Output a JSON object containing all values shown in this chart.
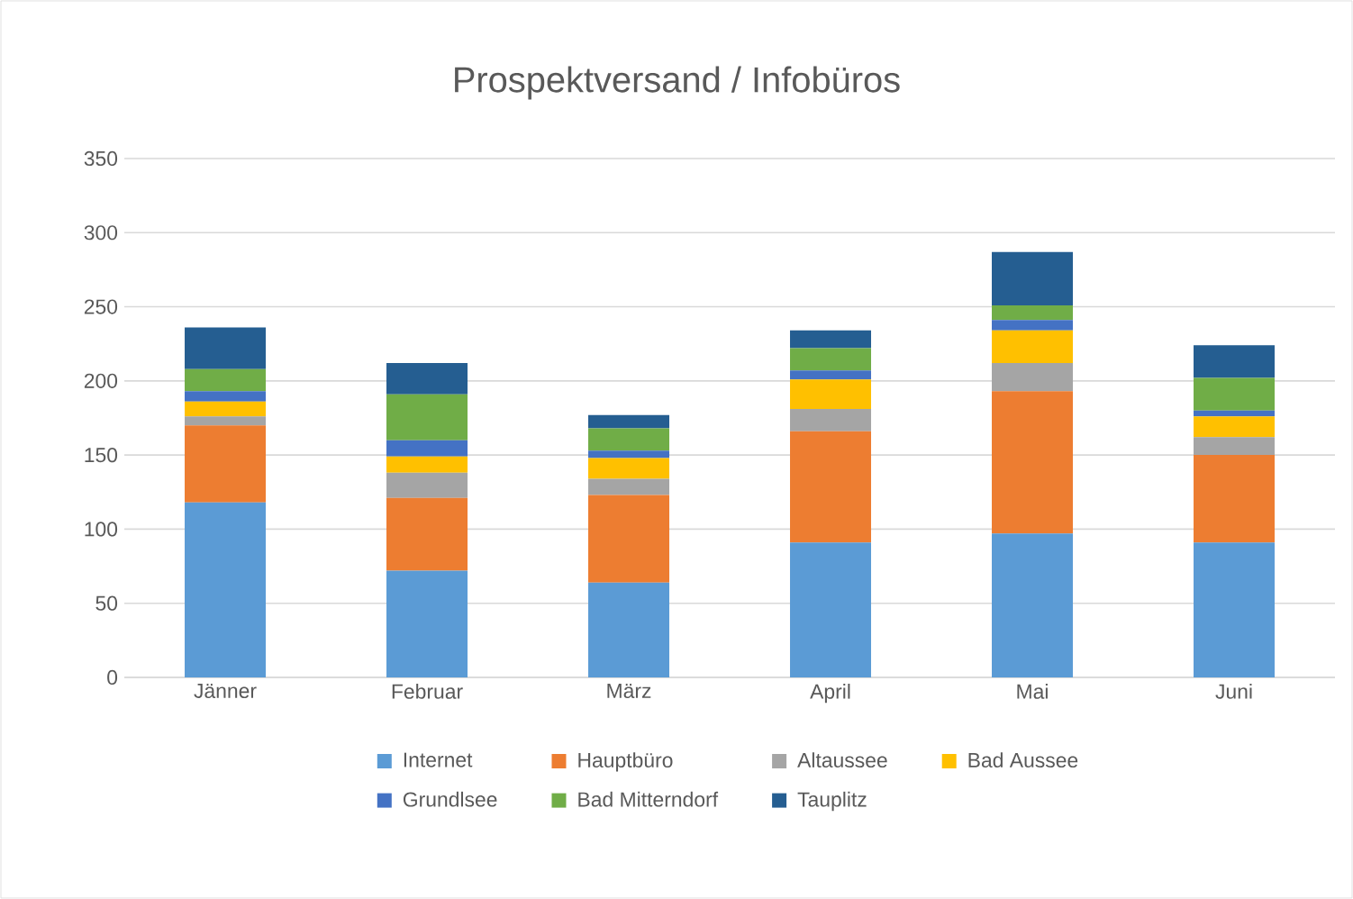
{
  "chart_data": {
    "type": "bar",
    "stacked": true,
    "title": "Prospektversand / Infobüros",
    "categories": [
      "Jänner",
      "Februar",
      "März",
      "April",
      "Mai",
      "Juni"
    ],
    "series": [
      {
        "name": "Internet",
        "color": "#5b9bd5",
        "values": [
          118,
          72,
          64,
          91,
          97,
          91
        ]
      },
      {
        "name": "Hauptbüro",
        "color": "#ed7d31",
        "values": [
          52,
          49,
          59,
          75,
          96,
          59
        ]
      },
      {
        "name": "Altaussee",
        "color": "#a5a5a5",
        "values": [
          6,
          17,
          11,
          15,
          19,
          12
        ]
      },
      {
        "name": "Bad Aussee",
        "color": "#ffc000",
        "values": [
          10,
          11,
          14,
          20,
          22,
          14
        ]
      },
      {
        "name": "Grundlsee",
        "color": "#4472c4",
        "values": [
          7,
          11,
          5,
          6,
          7,
          4
        ]
      },
      {
        "name": "Bad Mitterndorf",
        "color": "#70ad47",
        "values": [
          15,
          31,
          15,
          15,
          10,
          22
        ]
      },
      {
        "name": "Tauplitz",
        "color": "#255e91",
        "values": [
          28,
          21,
          9,
          12,
          36,
          22
        ]
      }
    ],
    "ylim": [
      0,
      350
    ],
    "yticks": [
      0,
      50,
      100,
      150,
      200,
      250,
      300,
      350
    ],
    "grid": "y",
    "legend": "bottom"
  }
}
